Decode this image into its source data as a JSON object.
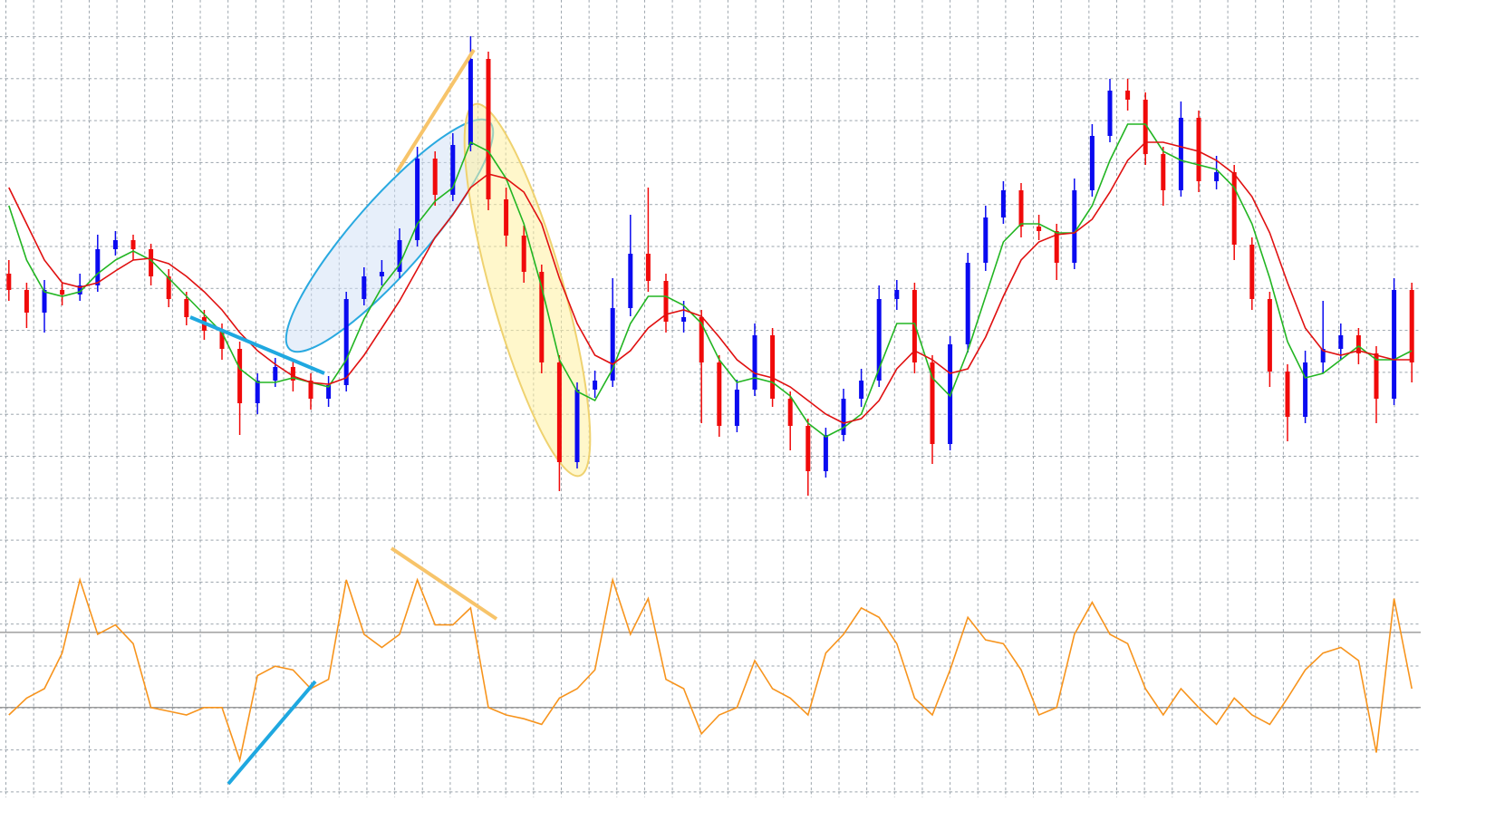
{
  "chart_data": [
    {
      "type": "candlestick",
      "up_color": "#0a0af0",
      "down_color": "#f00a0a",
      "ylim": [
        377,
        890
      ],
      "open": [
        625,
        607,
        582,
        607,
        602,
        612,
        652,
        662,
        652,
        622,
        597,
        577,
        562,
        542,
        482,
        507,
        522,
        507,
        487,
        502,
        597,
        622,
        627,
        662,
        752,
        712,
        767,
        862,
        707,
        667,
        627,
        527,
        417,
        497,
        507,
        587,
        647,
        617,
        572,
        577,
        527,
        457,
        497,
        557,
        487,
        457,
        407,
        447,
        487,
        507,
        597,
        607,
        527,
        437,
        547,
        637,
        687,
        717,
        677,
        672,
        637,
        717,
        777,
        827,
        817,
        757,
        717,
        797,
        727,
        737,
        657,
        597,
        517,
        467,
        527,
        542,
        557,
        537,
        487,
        607
      ],
      "high": [
        640,
        615,
        618,
        615,
        625,
        668,
        672,
        668,
        658,
        630,
        605,
        585,
        570,
        550,
        515,
        532,
        530,
        515,
        512,
        605,
        632,
        640,
        675,
        765,
        760,
        780,
        887,
        870,
        720,
        678,
        635,
        535,
        505,
        518,
        620,
        690,
        720,
        625,
        595,
        585,
        535,
        508,
        570,
        565,
        495,
        465,
        455,
        498,
        520,
        612,
        618,
        615,
        535,
        556,
        648,
        700,
        727,
        725,
        690,
        680,
        730,
        790,
        840,
        840,
        825,
        765,
        815,
        805,
        755,
        745,
        665,
        605,
        525,
        540,
        595,
        570,
        565,
        545,
        620,
        615
      ],
      "low": [
        595,
        565,
        560,
        590,
        595,
        605,
        645,
        640,
        612,
        588,
        568,
        552,
        530,
        447,
        470,
        500,
        495,
        475,
        478,
        495,
        590,
        612,
        620,
        655,
        700,
        705,
        760,
        695,
        655,
        615,
        515,
        385,
        410,
        488,
        500,
        578,
        605,
        560,
        560,
        460,
        445,
        450,
        490,
        478,
        430,
        380,
        400,
        440,
        478,
        500,
        585,
        515,
        415,
        430,
        538,
        628,
        680,
        665,
        662,
        618,
        630,
        710,
        770,
        805,
        745,
        700,
        710,
        715,
        718,
        640,
        585,
        500,
        440,
        460,
        515,
        530,
        525,
        460,
        480,
        505
      ],
      "close": [
        607,
        582,
        607,
        602,
        612,
        652,
        662,
        652,
        622,
        597,
        577,
        562,
        542,
        482,
        507,
        522,
        507,
        487,
        502,
        597,
        622,
        627,
        662,
        752,
        712,
        767,
        862,
        707,
        667,
        627,
        527,
        417,
        497,
        507,
        587,
        647,
        617,
        572,
        577,
        527,
        457,
        497,
        557,
        487,
        457,
        407,
        447,
        487,
        507,
        597,
        607,
        527,
        437,
        547,
        637,
        687,
        717,
        677,
        672,
        637,
        717,
        777,
        827,
        817,
        757,
        717,
        797,
        727,
        737,
        657,
        597,
        517,
        467,
        527,
        542,
        557,
        537,
        487,
        607,
        527
      ],
      "overlays": [
        {
          "color": "#22b522",
          "values": [
            700,
            640,
            605,
            600,
            605,
            625,
            640,
            650,
            640,
            620,
            600,
            580,
            560,
            520,
            505,
            505,
            510,
            505,
            500,
            530,
            575,
            610,
            635,
            680,
            705,
            720,
            770,
            760,
            730,
            680,
            610,
            530,
            495,
            485,
            520,
            570,
            600,
            600,
            590,
            570,
            530,
            505,
            510,
            505,
            490,
            460,
            445,
            455,
            470,
            520,
            570,
            570,
            510,
            490,
            540,
            600,
            660,
            680,
            680,
            670,
            670,
            700,
            750,
            790,
            790,
            760,
            750,
            745,
            740,
            720,
            680,
            620,
            550,
            510,
            515,
            530,
            545,
            530,
            530,
            540
          ]
        },
        {
          "color": "#e01010",
          "values": [
            720,
            680,
            640,
            615,
            610,
            615,
            628,
            640,
            642,
            636,
            622,
            605,
            585,
            560,
            540,
            525,
            512,
            505,
            503,
            510,
            535,
            565,
            595,
            630,
            665,
            690,
            720,
            735,
            730,
            715,
            680,
            620,
            570,
            535,
            525,
            540,
            565,
            580,
            585,
            578,
            555,
            530,
            515,
            510,
            500,
            485,
            470,
            460,
            465,
            485,
            520,
            540,
            530,
            515,
            520,
            555,
            600,
            640,
            660,
            668,
            670,
            685,
            715,
            750,
            770,
            770,
            765,
            760,
            750,
            735,
            710,
            670,
            615,
            565,
            540,
            535,
            540,
            535,
            530,
            530
          ]
        }
      ]
    },
    {
      "type": "line",
      "color": "#f7941d",
      "ylim": [
        -15,
        110
      ],
      "levels": [
        30,
        70
      ],
      "values": [
        26,
        35,
        40,
        59,
        98,
        69,
        74,
        64,
        30,
        28,
        26,
        30,
        30,
        2,
        47,
        52,
        50,
        40,
        45,
        98,
        69,
        62,
        69,
        98,
        74,
        74,
        83,
        30,
        26,
        24,
        21,
        35,
        40,
        50,
        98,
        69,
        88,
        45,
        40,
        16,
        26,
        30,
        55,
        40,
        35,
        26,
        59,
        69,
        83,
        78,
        64,
        35,
        26,
        50,
        78,
        66,
        64,
        50,
        26,
        30,
        69,
        86,
        69,
        64,
        40,
        26,
        40,
        30,
        21,
        35,
        26,
        21,
        35,
        50,
        59,
        62,
        55,
        6,
        88,
        40
      ]
    }
  ]
}
